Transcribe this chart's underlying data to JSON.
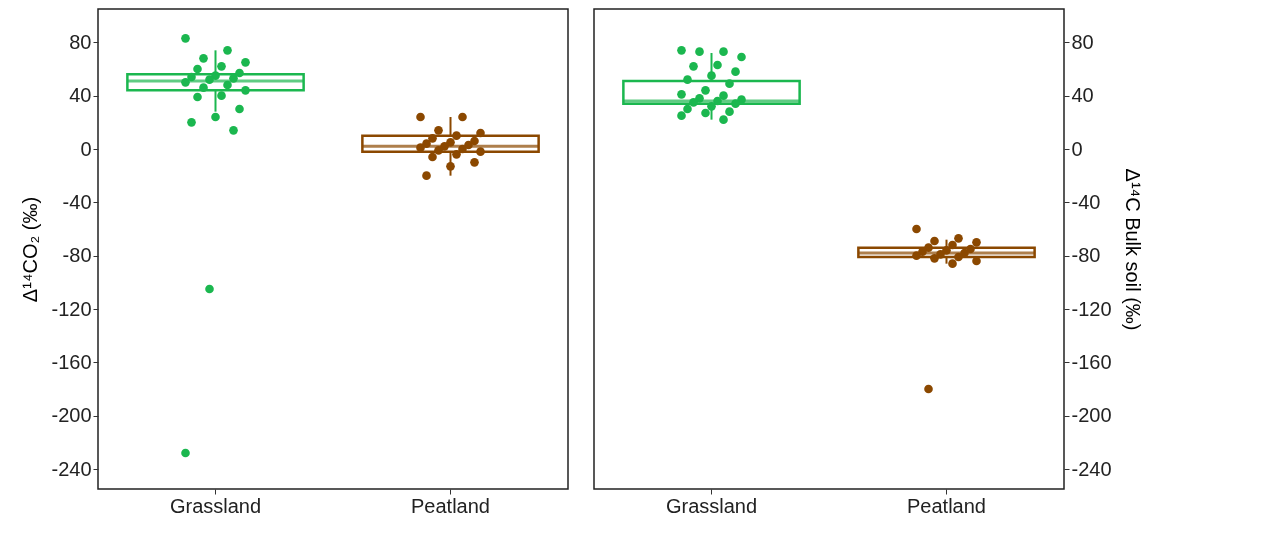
{
  "chart_data": [
    {
      "type": "box",
      "categories": [
        "Grassland",
        "Peatland"
      ],
      "ylabel": "Δ¹⁴CO₂ (‰)",
      "ylim": [
        -255,
        105
      ],
      "yticks": [
        -240,
        -200,
        -160,
        -120,
        -80,
        -40,
        0,
        40,
        80
      ],
      "grid": false,
      "series": [
        {
          "colors": [
            "#1bb74f",
            "#8b4800"
          ],
          "boxes": [
            {
              "low": 28,
              "q1": 44,
              "median": 51,
              "q3": 56,
              "high": 74
            },
            {
              "low": -20,
              "q1": -2,
              "median": 2,
              "q3": 10,
              "high": 24
            }
          ]
        },
        {
          "type": "scatter",
          "x": [
            "Grassland",
            "Grassland",
            "Grassland",
            "Grassland",
            "Grassland",
            "Grassland",
            "Grassland",
            "Grassland",
            "Grassland",
            "Grassland",
            "Grassland",
            "Grassland",
            "Grassland",
            "Grassland",
            "Grassland",
            "Grassland",
            "Grassland",
            "Grassland",
            "Grassland",
            "Grassland",
            "Grassland",
            "Grassland",
            "Grassland"
          ],
          "values": [
            83,
            74,
            68,
            65,
            62,
            60,
            57,
            55,
            54,
            53,
            52,
            50,
            48,
            46,
            44,
            40,
            39,
            30,
            24,
            20,
            14,
            -105,
            -228
          ],
          "color": "#1bb74f"
        },
        {
          "type": "scatter",
          "x": [
            "Peatland",
            "Peatland",
            "Peatland",
            "Peatland",
            "Peatland",
            "Peatland",
            "Peatland",
            "Peatland",
            "Peatland",
            "Peatland",
            "Peatland",
            "Peatland",
            "Peatland",
            "Peatland",
            "Peatland",
            "Peatland",
            "Peatland",
            "Peatland",
            "Peatland",
            "Peatland"
          ],
          "values": [
            24,
            24,
            14,
            12,
            10,
            8,
            6,
            5,
            4,
            3,
            2,
            1,
            0,
            -1,
            -2,
            -4,
            -6,
            -10,
            -13,
            -20
          ],
          "color": "#8b4800"
        }
      ]
    },
    {
      "type": "box",
      "categories": [
        "Grassland",
        "Peatland"
      ],
      "y2label": "Δ¹⁴C Bulk soil (‰)",
      "y2lim": [
        -255,
        105
      ],
      "y2ticks": [
        -240,
        -200,
        -160,
        -120,
        -80,
        -40,
        0,
        40,
        80
      ],
      "grid": false,
      "series": [
        {
          "axis": "y2",
          "colors": [
            "#1bb74f",
            "#8b4800"
          ],
          "boxes": [
            {
              "low": 22,
              "q1": 34,
              "median": 36,
              "q3": 51,
              "high": 72
            },
            {
              "low": -86,
              "q1": -81,
              "median": -78,
              "q3": -74,
              "high": -68
            }
          ]
        },
        {
          "type": "scatter",
          "axis": "y2",
          "x": [
            "Grassland",
            "Grassland",
            "Grassland",
            "Grassland",
            "Grassland",
            "Grassland",
            "Grassland",
            "Grassland",
            "Grassland",
            "Grassland",
            "Grassland",
            "Grassland",
            "Grassland",
            "Grassland",
            "Grassland",
            "Grassland",
            "Grassland",
            "Grassland",
            "Grassland",
            "Grassland",
            "Grassland",
            "Grassland",
            "Grassland",
            "Grassland"
          ],
          "values": [
            74,
            73,
            73,
            69,
            63,
            62,
            58,
            55,
            52,
            49,
            44,
            41,
            40,
            38,
            37,
            36,
            35,
            34,
            32,
            30,
            28,
            27,
            25,
            22
          ],
          "color": "#1bb74f"
        },
        {
          "type": "scatter",
          "axis": "y2",
          "x": [
            "Peatland",
            "Peatland",
            "Peatland",
            "Peatland",
            "Peatland",
            "Peatland",
            "Peatland",
            "Peatland",
            "Peatland",
            "Peatland",
            "Peatland",
            "Peatland",
            "Peatland",
            "Peatland",
            "Peatland",
            "Peatland",
            "Peatland"
          ],
          "values": [
            -60,
            -67,
            -69,
            -70,
            -72,
            -74,
            -75,
            -76,
            -77,
            -78,
            -79,
            -80,
            -81,
            -82,
            -84,
            -86,
            -180
          ],
          "color": "#8b4800"
        }
      ]
    }
  ]
}
